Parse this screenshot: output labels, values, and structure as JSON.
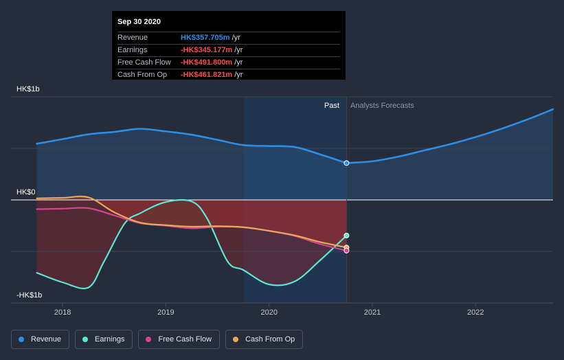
{
  "tooltip": {
    "date": "Sep 30 2020",
    "rows": [
      {
        "label": "Revenue",
        "value": "HK$357.705m",
        "unit": "/yr",
        "color": "#2f8fdf"
      },
      {
        "label": "Earnings",
        "value": "-HK$345.177m",
        "unit": "/yr",
        "color": "#ff4b4b"
      },
      {
        "label": "Free Cash Flow",
        "value": "-HK$491.800m",
        "unit": "/yr",
        "color": "#ff4b4b"
      },
      {
        "label": "Cash From Op",
        "value": "-HK$461.821m",
        "unit": "/yr",
        "color": "#ff4b4b"
      }
    ]
  },
  "legend": [
    {
      "label": "Revenue",
      "color": "#2d8ee3"
    },
    {
      "label": "Earnings",
      "color": "#5ee6d2"
    },
    {
      "label": "Free Cash Flow",
      "color": "#d6448c"
    },
    {
      "label": "Cash From Op",
      "color": "#e8a85b"
    }
  ],
  "chart_data": {
    "type": "line",
    "title": "",
    "xlabel": "",
    "ylabel": "",
    "ylim": [
      -1000,
      1000
    ],
    "xlim": [
      2017.5,
      2022.75
    ],
    "y_tick_labels": [
      "HK$1b",
      "HK$0",
      "-HK$1b"
    ],
    "x_tick_labels": [
      "2018",
      "2019",
      "2020",
      "2021",
      "2022"
    ],
    "past_label": "Past",
    "forecast_label": "Analysts Forecasts",
    "divider_x": 2020.75,
    "past_shade_start_x": 2019.75,
    "highlight_index": 3,
    "series": [
      {
        "name": "Revenue",
        "color": "#2d8ee3",
        "x": [
          2017.75,
          2018.0,
          2018.25,
          2018.5,
          2018.75,
          2019.0,
          2019.25,
          2019.5,
          2019.75,
          2020.0,
          2020.25,
          2020.5,
          2020.75
        ],
        "y": [
          545,
          590,
          637,
          660,
          690,
          665,
          633,
          583,
          532,
          523,
          513,
          440,
          357.705
        ]
      },
      {
        "name": "Revenue Forecast",
        "color": "#2d8ee3",
        "x": [
          2020.75,
          2021.0,
          2021.25,
          2021.5,
          2021.75,
          2022.0,
          2022.25,
          2022.5,
          2022.75
        ],
        "y": [
          357.705,
          375,
          420,
          480,
          540,
          610,
          690,
          780,
          880
        ]
      },
      {
        "name": "Earnings",
        "color": "#5ee6d2",
        "x": [
          2017.75,
          2018.0,
          2018.25,
          2018.4,
          2018.6,
          2018.75,
          2019.0,
          2019.25,
          2019.4,
          2019.6,
          2019.75,
          2020.0,
          2020.25,
          2020.5,
          2020.75
        ],
        "y": [
          -707,
          -800,
          -850,
          -600,
          -230,
          -130,
          -20,
          -15,
          -180,
          -600,
          -680,
          -820,
          -790,
          -580,
          -345.177
        ]
      },
      {
        "name": "Free Cash Flow",
        "color": "#d6448c",
        "x": [
          2017.75,
          2018.0,
          2018.25,
          2018.5,
          2018.75,
          2019.0,
          2019.25,
          2019.5,
          2019.75,
          2020.0,
          2020.25,
          2020.5,
          2020.75
        ],
        "y": [
          -90,
          -85,
          -80,
          -150,
          -225,
          -250,
          -275,
          -260,
          -265,
          -300,
          -350,
          -430,
          -491.8
        ]
      },
      {
        "name": "Cash From Op",
        "color": "#e8a85b",
        "x": [
          2017.75,
          2018.0,
          2018.25,
          2018.5,
          2018.75,
          2019.0,
          2019.25,
          2019.5,
          2019.75,
          2020.0,
          2020.25,
          2020.5,
          2020.75
        ],
        "y": [
          15,
          20,
          25,
          -120,
          -220,
          -245,
          -260,
          -255,
          -265,
          -300,
          -345,
          -410,
          -461.821
        ]
      }
    ]
  }
}
